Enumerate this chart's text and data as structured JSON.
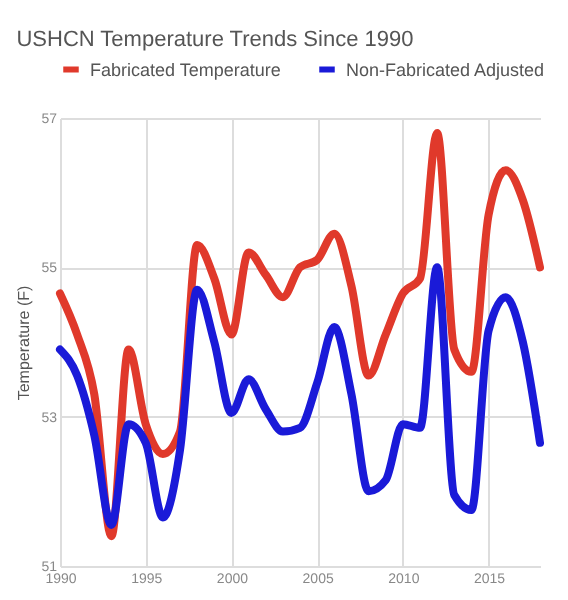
{
  "chart_data": {
    "type": "line",
    "title": "USHCN Temperature Trends Since 1990",
    "ylabel": "Temperature (F)",
    "x": [
      1990,
      1991,
      1992,
      1993,
      1994,
      1995,
      1996,
      1997,
      1998,
      1999,
      2000,
      2001,
      2002,
      2003,
      2004,
      2005,
      2006,
      2007,
      2008,
      2009,
      2010,
      2011,
      2012,
      2013,
      2014,
      2015,
      2016,
      2017,
      2018
    ],
    "series": [
      {
        "name": "Fabricated Temperature",
        "color": "#e0392b",
        "values": [
          54.65,
          54.1,
          53.3,
          51.4,
          53.9,
          52.9,
          52.5,
          52.8,
          55.3,
          54.85,
          54.1,
          55.2,
          54.9,
          54.6,
          55.0,
          55.1,
          55.45,
          54.75,
          53.55,
          54.1,
          54.65,
          54.85,
          56.8,
          53.9,
          53.6,
          55.7,
          56.3,
          55.9,
          55.0
        ]
      },
      {
        "name": "Non-Fabricated Adjusted",
        "color": "#1a1ad8",
        "values": [
          53.9,
          53.55,
          52.75,
          51.55,
          52.9,
          52.65,
          51.65,
          52.55,
          54.7,
          54.0,
          53.05,
          53.5,
          53.1,
          52.8,
          52.85,
          53.45,
          54.2,
          53.3,
          52.0,
          52.15,
          52.9,
          52.85,
          55.0,
          51.95,
          51.75,
          54.15,
          54.6,
          54.0,
          52.65
        ]
      }
    ],
    "xlim": [
      1990,
      2018
    ],
    "xticks": [
      1990,
      1995,
      2000,
      2005,
      2010,
      2015
    ],
    "ylim": [
      51,
      57
    ],
    "yticks": [
      51,
      53,
      55,
      57
    ],
    "grid": true,
    "legend": "top",
    "marker": "none",
    "line_style": "solid"
  }
}
